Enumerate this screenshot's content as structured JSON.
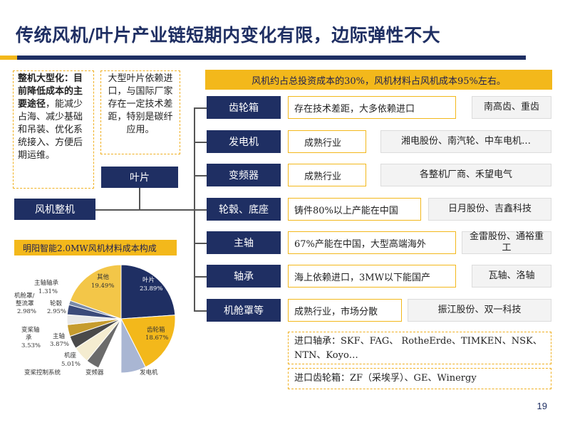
{
  "title": "传统风机/叶片产业链短期内变化有限，边际弹性不大",
  "note_left": {
    "bold": "整机大型化：目前降低成本的主要途径",
    "rest": "，能减少占海、减少基础和吊装、优化系统接入、方便后期运维。"
  },
  "note_right": "大型叶片依赖进口，与国际厂家存在一定技术差距，特别是碳纤应用。",
  "root_node": "风机整机",
  "blade_node": "叶片",
  "banner": "风机约占总投资成本的30%，风机材料占风机成本95%左右。",
  "rows": [
    {
      "component": "齿轮箱",
      "status": "存在技术差距，大多依赖进口",
      "companies": "南高齿、重齿"
    },
    {
      "component": "发电机",
      "status": "成熟行业",
      "companies": "湘电股份、南汽轮、中车电机…"
    },
    {
      "component": "变频器",
      "status": "成熟行业",
      "companies": "各整机厂商、禾望电气"
    },
    {
      "component": "轮毂、底座",
      "status": "铸件80%以上产能在中国",
      "companies": "日月股份、吉鑫科技"
    },
    {
      "component": "主轴",
      "status": "67%产能在中国，大型高端海外",
      "companies": "金雷股份、通裕重工"
    },
    {
      "component": "轴承",
      "status": "海上依赖进口，3MW以下能国产",
      "companies": "瓦轴、洛轴"
    },
    {
      "component": "机舱罩等",
      "status": "成熟行业，市场分散",
      "companies": "振江股份、双一科技"
    }
  ],
  "imports": {
    "bearing": "进口轴承：SKF、FAG、 RotheErde、TIMKEN、NSK、NTN、Koyo…",
    "gearbox": "进口齿轮箱：ZF（采埃孚）、GE、Winergy"
  },
  "pie": {
    "title": "明阳智能2.0MW风机材料成本构成",
    "labels": {
      "blade_name": "叶片",
      "blade_pct": "23.89%",
      "gear_name": "齿轮箱",
      "gear_pct": "18.67%",
      "other_name": "其他",
      "other_pct": "19.49%",
      "mainbearing_name": "主轴轴承",
      "mainbearing_pct": "1.31%",
      "nacelle_name1": "机舱罩/",
      "nacelle_name2": "整流罩",
      "nacelle_pct": "2.98%",
      "hub_name": "轮毂",
      "hub_pct": "2.95%",
      "pitch_name1": "变桨轴",
      "pitch_name2": "承",
      "pitch_pct": "3.53%",
      "shaft_name": "主轴",
      "shaft_pct": "3.87%",
      "frame_name": "机座",
      "frame_pct": "5.01%",
      "pitchctrl_name": "变桨控制系统",
      "conv_name": "变频器",
      "gen_name": "发电机"
    }
  },
  "chart_data": {
    "type": "pie",
    "title": "明阳智能2.0MW风机材料成本构成",
    "slices": [
      {
        "name": "叶片",
        "value": 23.89,
        "color": "#1f2f63"
      },
      {
        "name": "齿轮箱",
        "value": 18.67,
        "color": "#f3b81b"
      },
      {
        "name": "发电机",
        "value": 7.5,
        "color": "#a9b6d3"
      },
      {
        "name": "变频器",
        "value": 6.8,
        "color": "#ffffff"
      },
      {
        "name": "变桨控制系统",
        "value": 4.0,
        "color": "#6b6b6b"
      },
      {
        "name": "机座",
        "value": 5.01,
        "color": "#f4ecd0"
      },
      {
        "name": "主轴",
        "value": 3.87,
        "color": "#4a4a4a"
      },
      {
        "name": "变桨轴承",
        "value": 3.53,
        "color": "#c69c2e"
      },
      {
        "name": "轮毂",
        "value": 2.95,
        "color": "#e8e8e8"
      },
      {
        "name": "机舱罩/整流罩",
        "value": 2.98,
        "color": "#3b4a7a"
      },
      {
        "name": "主轴轴承",
        "value": 1.31,
        "color": "#7a8aa8"
      },
      {
        "name": "其他",
        "value": 19.49,
        "color": "#f3c648"
      }
    ]
  },
  "page_number": "19",
  "colors": {
    "navy": "#1f2f63",
    "gold": "#f3b81b"
  }
}
